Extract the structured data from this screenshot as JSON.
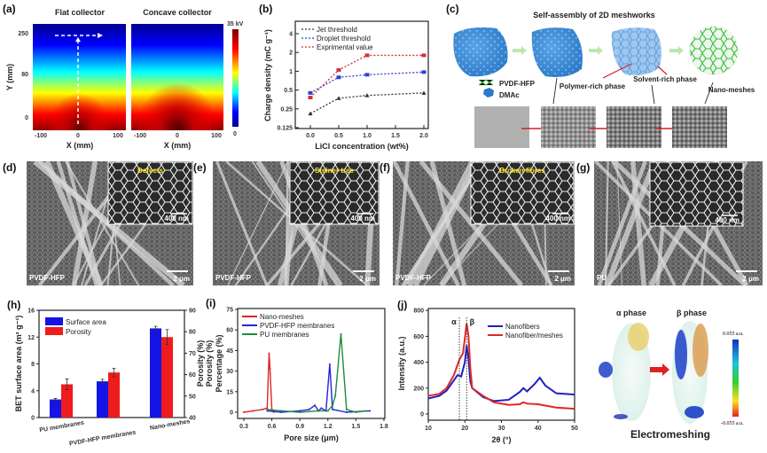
{
  "panel_labels": {
    "a": "(a)",
    "b": "(b)",
    "c": "(c)",
    "d": "(d)",
    "e": "(e)",
    "f": "(f)",
    "g": "(g)",
    "h": "(h)",
    "i": "(i)",
    "j": "(j)"
  },
  "panel_a": {
    "titles": [
      "Flat collector",
      "Concave collector"
    ],
    "ylabel": "Y (mm)",
    "xlabel": "X (mm)",
    "yticks": [
      "250",
      "80",
      "0"
    ],
    "xticks": [
      "-100",
      "0",
      "100"
    ],
    "colorbar_max": "35 kV",
    "colorbar_min": "0",
    "colormap": [
      "#00008f",
      "#0000ff",
      "#00ffff",
      "#ffff00",
      "#ff0000",
      "#800000"
    ]
  },
  "panel_c": {
    "title": "Self-assembly of 2D meshworks",
    "legend": [
      "PVDF-HFP",
      "DMAc"
    ],
    "annotations": [
      "Polymer-rich phase",
      "Solvent-rich phase",
      "Nano-meshes"
    ],
    "colors": {
      "solution": "#3a86d4",
      "mesh": "#3cc43c",
      "arrow": "#d42020"
    }
  },
  "sem_panels": [
    {
      "inset_label": "Defects",
      "inset_scale": "400 nm",
      "material": "PVDF-HFP",
      "scale": "2 μm"
    },
    {
      "inset_label": "Steiner tree",
      "inset_scale": "400 nm",
      "material": "PVDF-HFP",
      "scale": "2 μm"
    },
    {
      "inset_label": "Broken fibres",
      "inset_scale": "400 nm",
      "material": "PVDF-HFP",
      "scale": "2 μm"
    },
    {
      "inset_label": "",
      "inset_scale": "400 nm",
      "material": "PU",
      "scale": "2 μm"
    }
  ],
  "panel_k": {
    "titles": [
      "α phase",
      "β phase"
    ],
    "colorbar_max": "0.055 a.u.",
    "colorbar_min": "-0.055 a.u.",
    "caption": "Electromeshing"
  },
  "chart_data": [
    {
      "id": "b",
      "type": "line",
      "xlabel": "LiCl concentration (wt%)",
      "ylabel": "Charge density (mC g⁻¹)",
      "x": [
        0.0,
        0.5,
        1.0,
        2.0
      ],
      "xticks": [
        "0.0",
        "0.5",
        "1.0",
        "1.5",
        "2.0"
      ],
      "yticks": [
        "0.125",
        "0.25",
        "0.5",
        "1",
        "2",
        "4"
      ],
      "yscale": "log2",
      "ylim": [
        0.125,
        5
      ],
      "xlim": [
        -0.2,
        2.2
      ],
      "legend": "top-left",
      "series": [
        {
          "name": "Jet threshold",
          "color": "#333333",
          "values": [
            0.21,
            0.37,
            0.41,
            0.45
          ]
        },
        {
          "name": "Droplet threshold",
          "color": "#2f3fd8",
          "values": [
            0.45,
            0.8,
            0.88,
            0.97
          ]
        },
        {
          "name": "Exprimental value",
          "color": "#d63030",
          "values": [
            0.38,
            1.05,
            1.8,
            1.8
          ]
        }
      ]
    },
    {
      "id": "h",
      "type": "bar",
      "categories": [
        "PU membranes",
        "PVDF-HFP  membranes",
        "Nano-meshes"
      ],
      "ylabel": "BET surface area (m² g⁻¹)",
      "y2label": "Porosity (%)",
      "ylim": [
        0,
        16
      ],
      "y2lim": [
        40,
        90
      ],
      "yticks": [
        "0",
        "4",
        "8",
        "12",
        "16"
      ],
      "y2ticks": [
        "40",
        "50",
        "60",
        "70",
        "80",
        "90"
      ],
      "legend": "top-left",
      "series": [
        {
          "name": "Surface area",
          "color": "#1414e6",
          "axis": "left",
          "values": [
            2.7,
            5.4,
            13.3
          ],
          "errors": [
            0.15,
            0.3,
            0.3
          ]
        },
        {
          "name": "Porosity",
          "color": "#ee1c1c",
          "axis": "right",
          "values": [
            55.5,
            61,
            77.5
          ],
          "errors": [
            2.5,
            2,
            3.5
          ]
        }
      ]
    },
    {
      "id": "i",
      "type": "line",
      "xlabel": "Pore size (μm)",
      "ylabel": "Percentage (%)",
      "ylabel2": "Porosity (%)",
      "xlim": [
        0.25,
        1.8
      ],
      "ylim": [
        -5,
        75
      ],
      "xticks": [
        "0.3",
        "0.6",
        "0.9",
        "1.2",
        "1.5",
        "1.8"
      ],
      "yticks": [
        "0",
        "15",
        "30",
        "45",
        "60",
        "75"
      ],
      "legend": "top-left",
      "series": [
        {
          "name": "Nano-meshes",
          "color": "#e02424",
          "points": [
            [
              0.3,
              0
            ],
            [
              0.4,
              1
            ],
            [
              0.5,
              2
            ],
            [
              0.55,
              3
            ],
            [
              0.57,
              43
            ],
            [
              0.58,
              32
            ],
            [
              0.6,
              2
            ],
            [
              0.62,
              0
            ]
          ]
        },
        {
          "name": "PVDF-HFP membranes",
          "color": "#2424e0",
          "points": [
            [
              0.55,
              1
            ],
            [
              0.7,
              0
            ],
            [
              0.9,
              1
            ],
            [
              1.0,
              2
            ],
            [
              1.06,
              5
            ],
            [
              1.1,
              1
            ],
            [
              1.13,
              3
            ],
            [
              1.18,
              1
            ],
            [
              1.22,
              35
            ],
            [
              1.25,
              2
            ],
            [
              1.4,
              0
            ],
            [
              1.65,
              1
            ]
          ]
        },
        {
          "name": "PU membranes",
          "color": "#1f8a3a",
          "points": [
            [
              0.55,
              2
            ],
            [
              0.7,
              1
            ],
            [
              0.9,
              0
            ],
            [
              1.1,
              1
            ],
            [
              1.2,
              1
            ],
            [
              1.25,
              5
            ],
            [
              1.28,
              12
            ],
            [
              1.34,
              57
            ],
            [
              1.4,
              2
            ],
            [
              1.5,
              0
            ],
            [
              1.6,
              1
            ]
          ]
        }
      ]
    },
    {
      "id": "j",
      "type": "line",
      "xlabel": "2θ (°)",
      "ylabel": "Intensity (a.u.)",
      "xlim": [
        10,
        50
      ],
      "ylim": [
        -30,
        800
      ],
      "xticks": [
        "10",
        "20",
        "30",
        "40",
        "50"
      ],
      "yticks": [
        "0",
        "200",
        "400",
        "600",
        "800"
      ],
      "legend": "top-right",
      "markers": [
        {
          "label": "α",
          "x": 18.5
        },
        {
          "label": "β",
          "x": 20.5
        }
      ],
      "series": [
        {
          "name": "Nanofibers",
          "color": "#2020c0",
          "points": [
            [
              10,
              120
            ],
            [
              13,
              140
            ],
            [
              15,
              180
            ],
            [
              17,
              260
            ],
            [
              18,
              300
            ],
            [
              19,
              290
            ],
            [
              20,
              400
            ],
            [
              20.5,
              530
            ],
            [
              21,
              420
            ],
            [
              21.5,
              250
            ],
            [
              22,
              200
            ],
            [
              25,
              130
            ],
            [
              28,
              100
            ],
            [
              32,
              110
            ],
            [
              35,
              170
            ],
            [
              36,
              200
            ],
            [
              37,
              175
            ],
            [
              39,
              230
            ],
            [
              40.5,
              280
            ],
            [
              42,
              220
            ],
            [
              45,
              160
            ],
            [
              50,
              150
            ]
          ]
        },
        {
          "name": "Nanofiber/meshes",
          "color": "#e02828",
          "points": [
            [
              10,
              140
            ],
            [
              13,
              155
            ],
            [
              15,
              200
            ],
            [
              17,
              300
            ],
            [
              18.5,
              420
            ],
            [
              19.5,
              470
            ],
            [
              20.5,
              700
            ],
            [
              21,
              600
            ],
            [
              21.5,
              350
            ],
            [
              22,
              200
            ],
            [
              25,
              140
            ],
            [
              28,
              90
            ],
            [
              32,
              70
            ],
            [
              35,
              75
            ],
            [
              36,
              90
            ],
            [
              37,
              80
            ],
            [
              40,
              75
            ],
            [
              45,
              50
            ],
            [
              50,
              40
            ]
          ]
        }
      ]
    }
  ]
}
